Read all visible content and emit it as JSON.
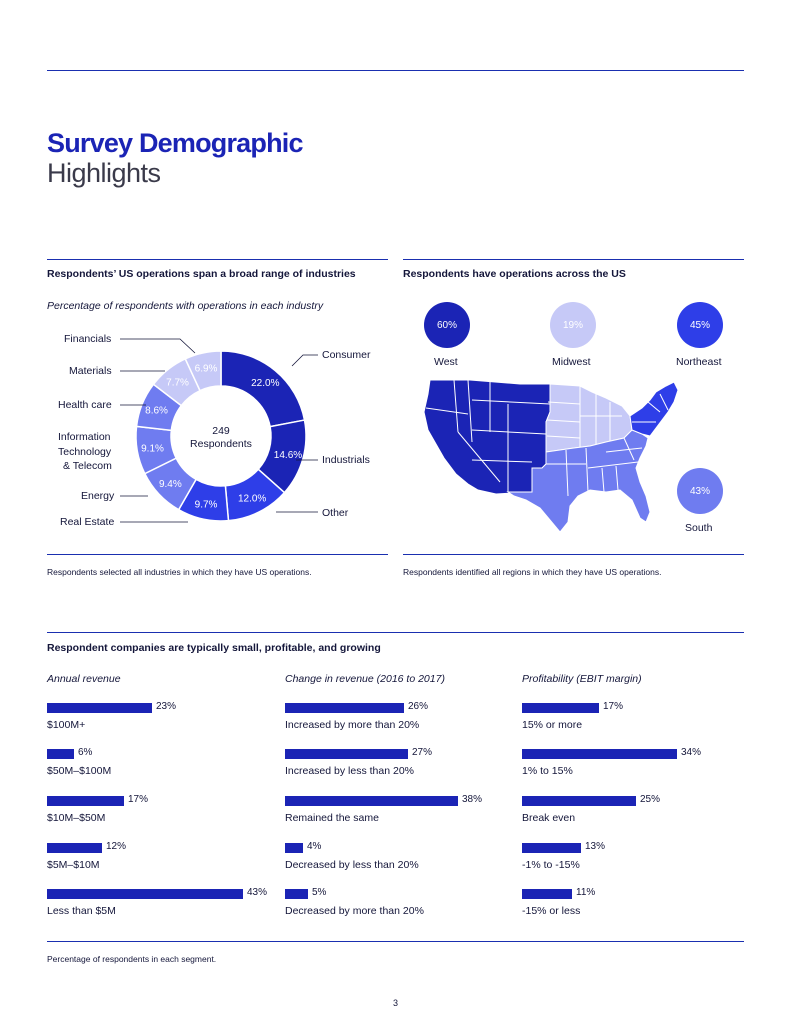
{
  "title": {
    "line1": "Survey Demographic",
    "line2": "Highlights"
  },
  "colors": {
    "dark": "#1b24b5",
    "blue": "#2e3ee8",
    "mid": "#6f7cf0",
    "light": "#c6c9f7",
    "text": "#14163a"
  },
  "industries": {
    "heading": "Respondents’ US operations span a broad range of industries",
    "subtitle": "Percentage of respondents with operations in each industry",
    "center_number": "249",
    "center_label": "Respondents",
    "footnote": "Respondents selected all industries in which they have US operations.",
    "chart_data": {
      "type": "pie",
      "title": "Percentage of respondents with operations in each industry",
      "total_respondents": 249,
      "slices": [
        {
          "label": "Consumer",
          "value": 22.0,
          "text": "22.0%"
        },
        {
          "label": "Industrials",
          "value": 14.6,
          "text": "14.6%"
        },
        {
          "label": "Other",
          "value": 12.0,
          "text": "12.0%"
        },
        {
          "label": "Real Estate",
          "value": 9.7,
          "text": "9.7%"
        },
        {
          "label": "Energy",
          "value": 9.4,
          "text": "9.4%"
        },
        {
          "label": "Information Technology & Telecom",
          "value": 9.1,
          "text": "9.1%"
        },
        {
          "label": "Health care",
          "value": 8.6,
          "text": "8.6%"
        },
        {
          "label": "Materials",
          "value": 7.7,
          "text": "7.7%"
        },
        {
          "label": "Financials",
          "value": 6.9,
          "text": "6.9%"
        }
      ]
    },
    "legend": {
      "financials": "Financials",
      "materials": "Materials",
      "health": "Health care",
      "it1": "Information",
      "it2": "Technology",
      "it3": "& Telecom",
      "energy": "Energy",
      "realestate": "Real Estate",
      "consumer": "Consumer",
      "industrials": "Industrials",
      "other": "Other"
    }
  },
  "regions": {
    "heading": "Respondents have operations across the US",
    "footnote": "Respondents identified all regions in which they have US operations.",
    "items": [
      {
        "name": "West",
        "value": "60%"
      },
      {
        "name": "Midwest",
        "value": "19%"
      },
      {
        "name": "Northeast",
        "value": "45%"
      },
      {
        "name": "South",
        "value": "43%"
      }
    ]
  },
  "companies": {
    "heading": "Respondent companies are typically small, profitable, and growing",
    "footnote": "Percentage of respondents in each segment.",
    "chart_data": [
      {
        "type": "bar",
        "title": "Annual revenue",
        "categories": [
          "$100M+",
          "$50M–$100M",
          "$10M–$50M",
          "$5M–$10M",
          "Less than $5M"
        ],
        "values": [
          23,
          6,
          17,
          12,
          43
        ],
        "labels": [
          "23%",
          "6%",
          "17%",
          "12%",
          "43%"
        ]
      },
      {
        "type": "bar",
        "title": "Change in revenue (2016 to 2017)",
        "categories": [
          "Increased by more than 20%",
          "Increased by less than 20%",
          "Remained the same",
          "Decreased by less than 20%",
          "Decreased by more than 20%"
        ],
        "values": [
          26,
          27,
          38,
          4,
          5
        ],
        "labels": [
          "26%",
          "27%",
          "38%",
          "4%",
          "5%"
        ]
      },
      {
        "type": "bar",
        "title": "Profitability (EBIT margin)",
        "categories": [
          "15% or more",
          "1% to 15%",
          "Break even",
          "-1% to -15%",
          "-15% or less"
        ],
        "values": [
          17,
          34,
          25,
          13,
          11
        ],
        "labels": [
          "17%",
          "34%",
          "25%",
          "13%",
          "11%"
        ]
      }
    ]
  },
  "page_number": "3"
}
